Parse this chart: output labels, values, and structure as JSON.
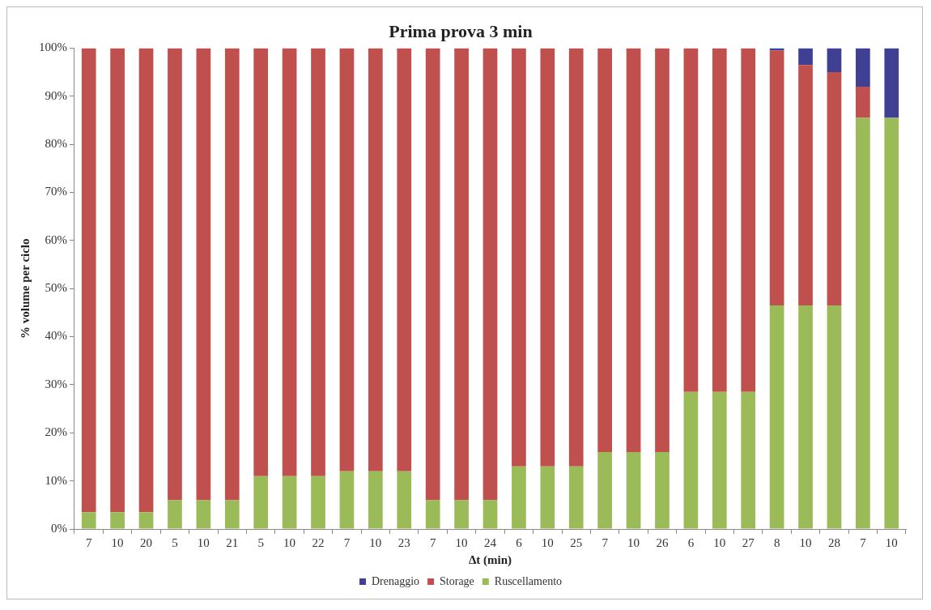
{
  "chart_data": {
    "type": "bar",
    "stacked": true,
    "title": "Prima prova 3 min",
    "xlabel": "Δt (min)",
    "ylabel": "% volume per ciclo",
    "categories": [
      "7",
      "10",
      "20",
      "5",
      "10",
      "21",
      "5",
      "10",
      "22",
      "7",
      "10",
      "23",
      "7",
      "10",
      "24",
      "6",
      "10",
      "25",
      "7",
      "10",
      "26",
      "6",
      "10",
      "27",
      "8",
      "10",
      "28",
      "7",
      "10"
    ],
    "series": [
      {
        "name": "Ruscellamento",
        "color": "#9bbb59",
        "values": [
          3.5,
          3.5,
          3.5,
          6,
          6,
          6,
          11,
          11,
          11,
          12,
          12,
          12,
          6,
          6,
          6,
          13,
          13,
          13,
          16,
          16,
          16,
          28.5,
          28.5,
          28.5,
          46.5,
          46.5,
          46.5,
          85.5,
          85.5
        ]
      },
      {
        "name": "Storage",
        "color": "#c0504d",
        "values": [
          96.5,
          96.5,
          96.5,
          94,
          94,
          94,
          89,
          89,
          89,
          88,
          88,
          88,
          94,
          94,
          94,
          87,
          87,
          87,
          84,
          84,
          84,
          71.5,
          71.5,
          71.5,
          53,
          50,
          48.5,
          6.5,
          0
        ]
      },
      {
        "name": "Drenaggio",
        "color": "#3f3f93",
        "values": [
          0,
          0,
          0,
          0,
          0,
          0,
          0,
          0,
          0,
          0,
          0,
          0,
          0,
          0,
          0,
          0,
          0,
          0,
          0,
          0,
          0,
          0,
          0,
          0,
          0.5,
          3.5,
          5,
          8,
          14.5
        ]
      }
    ],
    "ylim": [
      0,
      100
    ],
    "yticks": [
      {
        "value": 0,
        "label": "0%"
      },
      {
        "value": 10,
        "label": "10%"
      },
      {
        "value": 20,
        "label": "20%"
      },
      {
        "value": 30,
        "label": "30%"
      },
      {
        "value": 40,
        "label": "40%"
      },
      {
        "value": 50,
        "label": "50%"
      },
      {
        "value": 60,
        "label": "60%"
      },
      {
        "value": 70,
        "label": "70%"
      },
      {
        "value": 80,
        "label": "80%"
      },
      {
        "value": 90,
        "label": "90%"
      },
      {
        "value": 100,
        "label": "100%"
      }
    ],
    "grid": false,
    "legend": "bottom"
  }
}
